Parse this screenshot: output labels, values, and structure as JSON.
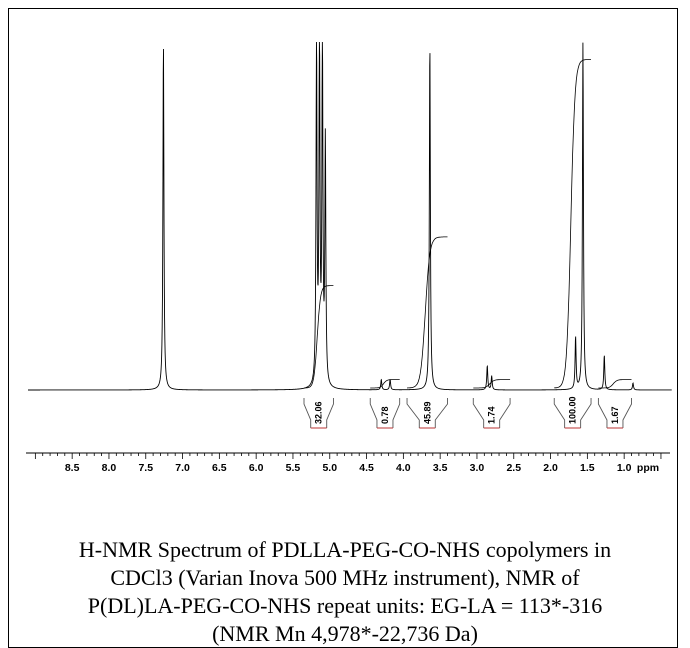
{
  "chart_data": {
    "type": "line",
    "title": "",
    "xlabel": "",
    "ylabel": "",
    "x_unit": "ppm",
    "xlim": [
      9.1,
      0.35
    ],
    "x_ticks": [
      "8.5",
      "8.0",
      "7.5",
      "7.0",
      "6.5",
      "6.0",
      "5.5",
      "5.0",
      "4.5",
      "4.0",
      "3.5",
      "3.0",
      "2.5",
      "2.0",
      "1.5",
      "1.0"
    ],
    "peaks": [
      {
        "ppm": 7.26,
        "relative_height": 1.0
      },
      {
        "ppm": 5.18,
        "relative_height": 1.0
      },
      {
        "ppm": 5.14,
        "relative_height": 1.0
      },
      {
        "ppm": 5.1,
        "relative_height": 1.0
      },
      {
        "ppm": 5.06,
        "relative_height": 0.7
      },
      {
        "ppm": 4.3,
        "relative_height": 0.03
      },
      {
        "ppm": 4.18,
        "relative_height": 0.03
      },
      {
        "ppm": 3.64,
        "relative_height": 1.0
      },
      {
        "ppm": 2.86,
        "relative_height": 0.07
      },
      {
        "ppm": 2.8,
        "relative_height": 0.04
      },
      {
        "ppm": 1.66,
        "relative_height": 0.15
      },
      {
        "ppm": 1.56,
        "relative_height": 1.0
      },
      {
        "ppm": 1.27,
        "relative_height": 0.1
      },
      {
        "ppm": 0.88,
        "relative_height": 0.02
      }
    ],
    "integrals": [
      {
        "label": "32.06",
        "from": 5.35,
        "to": 4.95,
        "curve_top": 0.3
      },
      {
        "label": "0.78",
        "from": 4.45,
        "to": 4.05,
        "curve_top": 0.03
      },
      {
        "label": "45.89",
        "from": 3.95,
        "to": 3.4,
        "curve_top": 0.44
      },
      {
        "label": "1.74",
        "from": 3.05,
        "to": 2.55,
        "curve_top": 0.03
      },
      {
        "label": "100.00",
        "from": 1.95,
        "to": 1.45,
        "curve_top": 0.95
      },
      {
        "label": "1.67",
        "from": 1.35,
        "to": 0.9,
        "curve_top": 0.03
      }
    ]
  },
  "caption": {
    "line1": "H-NMR Spectrum of PDLLA-PEG-CO-NHS copolymers in",
    "line2": "CDCl3 (Varian Inova 500 MHz instrument), NMR of",
    "line3": "P(DL)LA-PEG-CO-NHS repeat units: EG-LA = 113*-316",
    "line4": "(NMR Mn 4,978*-22,736 Da)"
  }
}
